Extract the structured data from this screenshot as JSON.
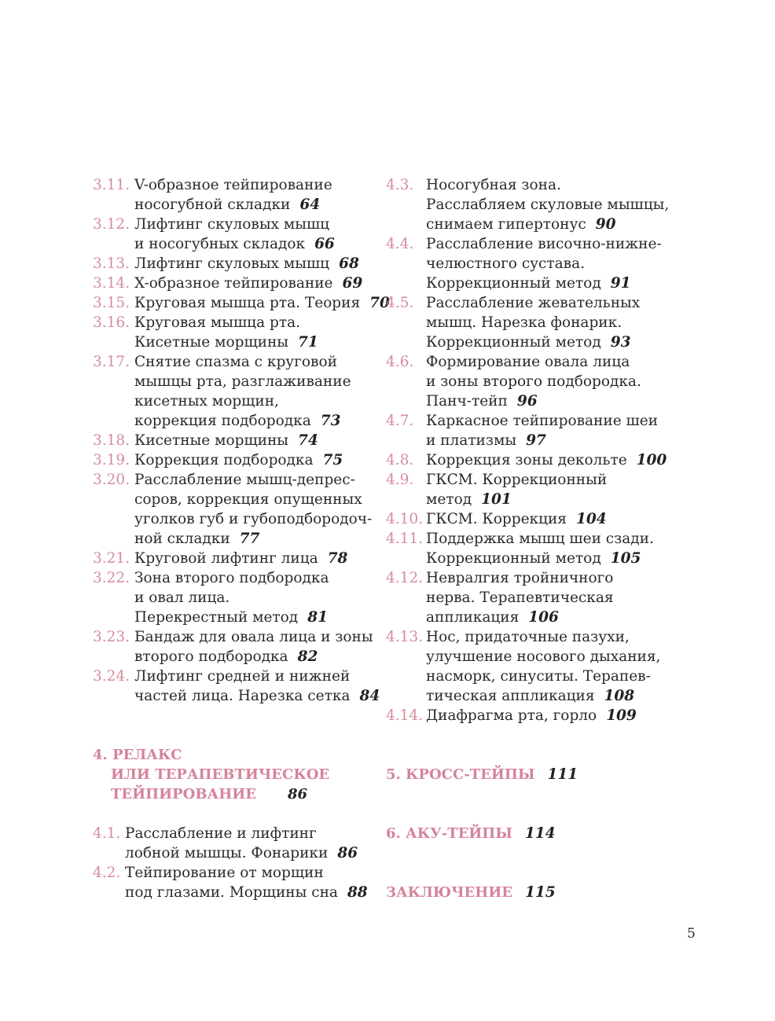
{
  "left_entries": [
    {
      "num": "3.11.",
      "lines": [
        "V-образное тейпирование",
        "носогубной складки"
      ],
      "page": "64"
    },
    {
      "num": "3.12.",
      "lines": [
        "Лифтинг скуловых мышц",
        "и носогубных складок"
      ],
      "page": "66"
    },
    {
      "num": "3.13.",
      "lines": [
        "Лифтинг скуловых мышц"
      ],
      "page": "68"
    },
    {
      "num": "3.14.",
      "lines": [
        "X-образное тейпирование"
      ],
      "page": "69"
    },
    {
      "num": "3.15.",
      "lines": [
        "Круговая мышца рта. Теория"
      ],
      "page": "70"
    },
    {
      "num": "3.16.",
      "lines": [
        "Круговая мышца рта.",
        "Кисетные морщины"
      ],
      "page": "71"
    },
    {
      "num": "3.17.",
      "lines": [
        "Снятие спазма с круговой",
        "мышцы рта, разглаживание",
        "кисетных морщин,",
        "коррекция подбородка"
      ],
      "page": "73"
    },
    {
      "num": "3.18.",
      "lines": [
        "Кисетные морщины"
      ],
      "page": "74"
    },
    {
      "num": "3.19.",
      "lines": [
        "Коррекция подбородка"
      ],
      "page": "75"
    },
    {
      "num": "3.20.",
      "lines": [
        "Расслабление мышц-депрес-",
        "соров, коррекция опущенных",
        "уголков губ и губоподбородоч-",
        "ной складки"
      ],
      "page": "77"
    },
    {
      "num": "3.21.",
      "lines": [
        "Круговой лифтинг лица"
      ],
      "page": "78"
    },
    {
      "num": "3.22.",
      "lines": [
        "Зона второго подбородка",
        "и овал лица.",
        "Перекрестный метод"
      ],
      "page": "81"
    },
    {
      "num": "3.23.",
      "lines": [
        "Бандаж для овала лица и зоны",
        "второго подбородка"
      ],
      "page": "82"
    },
    {
      "num": "3.24.",
      "lines": [
        "Лифтинг средней и нижней",
        "частей лица. Нарезка сетка"
      ],
      "page": "84"
    }
  ],
  "section4": {
    "num": "4.",
    "lines": [
      "РЕЛАКС",
      "ИЛИ ТЕРАПЕВТИЧЕСКОЕ",
      "ТЕЙПИРОВАНИЕ"
    ],
    "page": "86"
  },
  "left_entries_2": [
    {
      "num": "4.1.",
      "lines": [
        "Расслабление и лифтинг",
        "лобной мышцы. Фонарики"
      ],
      "page": "86"
    },
    {
      "num": "4.2.",
      "lines": [
        "Тейпирование от морщин",
        "под глазами. Морщины сна"
      ],
      "page": "88"
    }
  ],
  "right_entries": [
    {
      "num": "4.3.",
      "lines": [
        "Носогубная зона.",
        "Расслабляем скуловые мышцы,",
        "снимаем гипертонус"
      ],
      "page": "90"
    },
    {
      "num": "4.4.",
      "lines": [
        "Расслабление височно-нижне-",
        "челюстного сустава.",
        "Коррекционный метод"
      ],
      "page": "91"
    },
    {
      "num": "4.5.",
      "lines": [
        "Расслабление жевательных",
        "мышц. Нарезка фонарик.",
        "Коррекционный метод"
      ],
      "page": "93"
    },
    {
      "num": "4.6.",
      "lines": [
        "Формирование овала лица",
        "и зоны второго подбородка.",
        "Панч-тейп"
      ],
      "page": "96"
    },
    {
      "num": "4.7.",
      "lines": [
        "Каркасное тейпирование шеи",
        "и платизмы"
      ],
      "page": "97"
    },
    {
      "num": "4.8.",
      "lines": [
        "Коррекция зоны декольте"
      ],
      "page": "100"
    },
    {
      "num": "4.9.",
      "lines": [
        "ГКСМ. Коррекционный",
        "метод"
      ],
      "page": "101"
    },
    {
      "num": "4.10.",
      "lines": [
        "ГКСМ. Коррекция"
      ],
      "page": "104"
    },
    {
      "num": "4.11.",
      "lines": [
        "Поддержка мышц шеи сзади.",
        "Коррекционный метод"
      ],
      "page": "105"
    },
    {
      "num": "4.12.",
      "lines": [
        "Невралгия тройничного",
        "нерва. Терапевтическая",
        "аппликация"
      ],
      "page": "106"
    },
    {
      "num": "4.13.",
      "lines": [
        "Нос, придаточные пазухи,",
        "улучшение носового дыхания,",
        "насморк, синуситы. Терапев-",
        "тическая аппликация"
      ],
      "page": "108"
    },
    {
      "num": "4.14.",
      "lines": [
        "Диафрагма рта, горло"
      ],
      "page": "109"
    }
  ],
  "right_sections": [
    {
      "title": "5. КРОСС-ТЕЙПЫ",
      "page": "111"
    },
    {
      "title": "6. АКУ-ТЕЙПЫ",
      "page": "114"
    },
    {
      "title": "ЗАКЛЮЧЕНИЕ",
      "page": "115"
    }
  ],
  "page_number": "5",
  "colors": {
    "accent": "#d68d9c",
    "heading": "#d4849a",
    "text": "#2a2a2a"
  }
}
